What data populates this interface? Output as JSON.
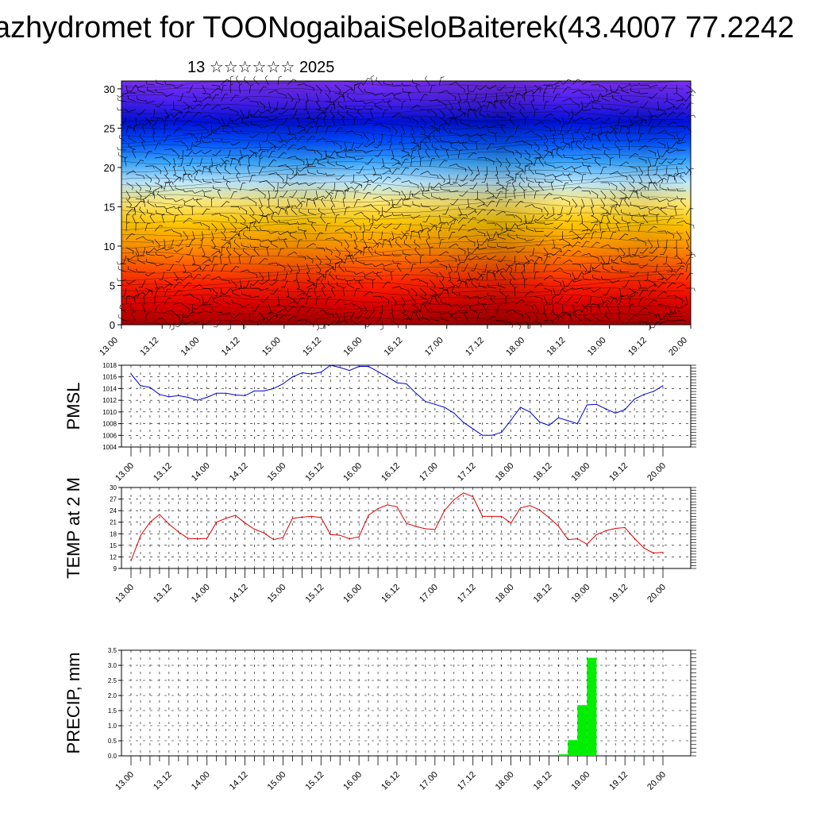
{
  "title": "azhydromet for TOONogaibaiSeloBaiterek(43.4007 77.2242",
  "subtitle": "13 ☆☆☆☆☆☆ 2025",
  "time_labels": [
    "13.00",
    "13.12",
    "14.00",
    "14.12",
    "15.00",
    "15.12",
    "16.00",
    "16.12",
    "17.00",
    "17.12",
    "18.00",
    "18.12",
    "19.00",
    "19.12",
    "20.00"
  ],
  "chart_data": [
    {
      "type": "heatmap",
      "name": "cross-section",
      "y_ticks": [
        0,
        5,
        10,
        15,
        20,
        25,
        30
      ],
      "ylim": [
        0,
        31
      ],
      "xlim": [
        0,
        14
      ],
      "colors_bottom_to_top": [
        "#a80000",
        "#e00000",
        "#ff2000",
        "#ff6000",
        "#ff9a00",
        "#ffc800",
        "#ffe873",
        "#bfeaff",
        "#3aa8ff",
        "#0050ff",
        "#0010d8",
        "#4a20ee",
        "#7a30f0"
      ],
      "wind_vectors": true
    },
    {
      "type": "line",
      "ylabel": "PMSL",
      "ylim": [
        1004,
        1018
      ],
      "y_ticks": [
        1004,
        1006,
        1008,
        1010,
        1012,
        1014,
        1016,
        1018
      ],
      "xlim": [
        0,
        14
      ],
      "color": "#0000cc",
      "x": [
        0,
        0.25,
        0.5,
        0.75,
        1,
        1.25,
        1.5,
        1.75,
        2,
        2.25,
        2.5,
        2.75,
        3,
        3.25,
        3.5,
        3.75,
        4,
        4.25,
        4.5,
        4.75,
        5,
        5.25,
        5.5,
        5.75,
        6,
        6.25,
        6.5,
        6.75,
        7,
        7.25,
        7.5,
        7.75,
        8,
        8.25,
        8.5,
        8.75,
        9,
        9.25,
        9.5,
        9.75,
        10,
        10.25,
        10.5,
        10.75,
        11,
        11.25,
        11.5,
        11.75,
        12,
        12.25,
        12.5,
        12.75,
        13,
        13.25,
        13.5,
        13.75,
        14
      ],
      "values": [
        1016.5,
        1014.5,
        1014.2,
        1013,
        1012.6,
        1012.8,
        1012.5,
        1012,
        1012.5,
        1013.2,
        1013.2,
        1012.9,
        1012.8,
        1013.6,
        1013.6,
        1014,
        1014.8,
        1016,
        1016.7,
        1016.5,
        1016.8,
        1018,
        1017.6,
        1017.1,
        1017.8,
        1017.8,
        1016.9,
        1016,
        1015,
        1014.8,
        1013.2,
        1011.8,
        1011.3,
        1010.8,
        1009.8,
        1008.2,
        1007.1,
        1006,
        1006,
        1006.5,
        1008.6,
        1010.8,
        1010,
        1008.3,
        1007.7,
        1009,
        1008.5,
        1008,
        1011.2,
        1011.3,
        1010.5,
        1009.8,
        1010.4,
        1012.2,
        1013,
        1013.5,
        1014.5
      ]
    },
    {
      "type": "line",
      "ylabel": "TEMP at 2 M",
      "ylim": [
        9,
        30
      ],
      "y_ticks": [
        9,
        12,
        15,
        18,
        21,
        24,
        27,
        30
      ],
      "xlim": [
        0,
        14
      ],
      "color": "#dd0000",
      "x": [
        0,
        0.25,
        0.5,
        0.75,
        1,
        1.25,
        1.5,
        1.75,
        2,
        2.25,
        2.5,
        2.75,
        3,
        3.25,
        3.5,
        3.75,
        4,
        4.25,
        4.5,
        4.75,
        5,
        5.25,
        5.5,
        5.75,
        6,
        6.25,
        6.5,
        6.75,
        7,
        7.25,
        7.5,
        7.75,
        8,
        8.25,
        8.5,
        8.75,
        9,
        9.25,
        9.5,
        9.75,
        10,
        10.25,
        10.5,
        10.75,
        11,
        11.25,
        11.5,
        11.75,
        12,
        12.25,
        12.5,
        12.75,
        13,
        13.25,
        13.5,
        13.75,
        14
      ],
      "values": [
        11,
        17.5,
        21,
        23,
        20.5,
        18.5,
        16.8,
        16.7,
        16.8,
        21,
        22,
        22.8,
        20.8,
        19.2,
        18.2,
        16.5,
        17,
        22,
        22.3,
        22.5,
        22.2,
        17.8,
        17.6,
        16.7,
        17.2,
        22.8,
        24.5,
        25.5,
        25,
        20.7,
        19.9,
        19.3,
        19.1,
        24,
        26.8,
        28.6,
        27.6,
        22.5,
        22.5,
        22.5,
        20.8,
        24.7,
        25.3,
        24.2,
        22.2,
        20,
        16.5,
        16.7,
        15.3,
        17.8,
        18.8,
        19.4,
        19.6,
        16.8,
        14.3,
        13,
        13.2
      ]
    },
    {
      "type": "bar",
      "ylabel": "PRECIP, mm",
      "ylim": [
        0,
        3.5
      ],
      "y_ticks": [
        0.0,
        0.5,
        1.0,
        1.5,
        2.0,
        2.5,
        3.0,
        3.5
      ],
      "xlim": [
        0,
        14
      ],
      "color": "#00ee00",
      "bar_width": 0.25,
      "x": [
        11.375,
        11.625,
        11.875,
        12.125,
        13.375
      ],
      "values": [
        0.05,
        0.52,
        1.68,
        3.25,
        0.03
      ]
    }
  ]
}
